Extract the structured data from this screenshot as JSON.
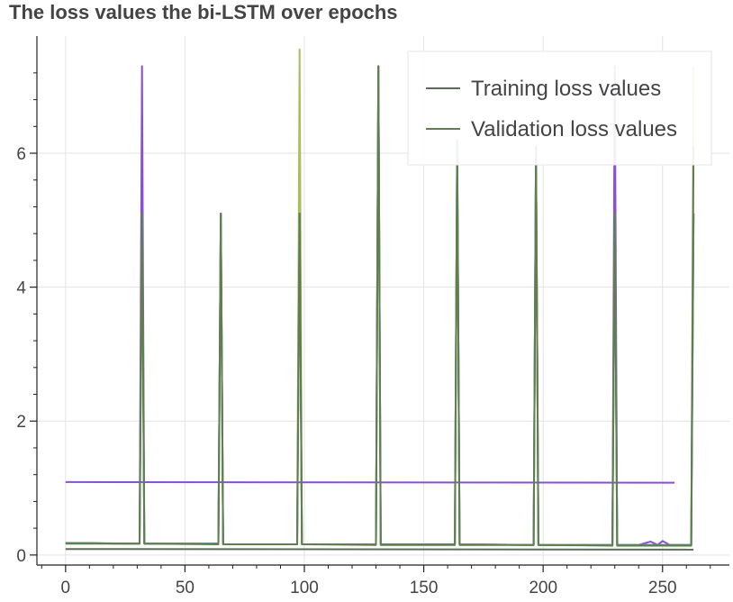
{
  "chart_data": {
    "type": "line",
    "title": "The loss values the bi-LSTM over epochs",
    "xlabel": "",
    "ylabel": "",
    "xlim": [
      -12,
      278
    ],
    "ylim": [
      -0.15,
      7.75
    ],
    "x_ticks": [
      0,
      50,
      100,
      150,
      200,
      250
    ],
    "y_ticks": [
      0,
      2,
      4,
      6
    ],
    "x_tick_labels": [
      "0",
      "50",
      "100",
      "150",
      "200",
      "250"
    ],
    "y_tick_labels": [
      "0",
      "2",
      "4",
      "6"
    ],
    "grid": true,
    "legend": {
      "position": "top-right",
      "entries": [
        "Training loss values",
        "Validation loss values"
      ]
    },
    "series": [
      {
        "role": "purple-flat",
        "color": "#8a4fd6",
        "points": [
          [
            0,
            1.09
          ],
          [
            255,
            1.08
          ]
        ]
      },
      {
        "role": "training-flat",
        "color": "#5b6b5b",
        "points": [
          [
            0,
            0.09
          ],
          [
            263,
            0.08
          ]
        ]
      },
      {
        "role": "purple-spiky",
        "color": "#8a4fd6",
        "points": [
          [
            0,
            0.18
          ],
          [
            10,
            0.18
          ],
          [
            20,
            0.17
          ],
          [
            31,
            0.17
          ],
          [
            32,
            7.3
          ],
          [
            33,
            0.17
          ],
          [
            64,
            0.17
          ],
          [
            65,
            5.1
          ],
          [
            66,
            0.16
          ],
          [
            97,
            0.16
          ],
          [
            98,
            5.1
          ],
          [
            99,
            0.16
          ],
          [
            130,
            0.16
          ],
          [
            131,
            7.3
          ],
          [
            132,
            0.16
          ],
          [
            163,
            0.16
          ],
          [
            164,
            6.1
          ],
          [
            165,
            0.16
          ],
          [
            196,
            0.15
          ],
          [
            197,
            6.1
          ],
          [
            198,
            0.15
          ],
          [
            229,
            0.15
          ],
          [
            230,
            7.3
          ],
          [
            231,
            0.15
          ],
          [
            240,
            0.15
          ],
          [
            245,
            0.2
          ],
          [
            248,
            0.15
          ],
          [
            250,
            0.21
          ],
          [
            253,
            0.15
          ],
          [
            262,
            0.15
          ],
          [
            263,
            5.1
          ]
        ]
      },
      {
        "role": "olive-spiky",
        "color": "#a8bf5a",
        "points": [
          [
            0,
            0.18
          ],
          [
            31,
            0.17
          ],
          [
            32,
            5.1
          ],
          [
            33,
            0.17
          ],
          [
            64,
            0.17
          ],
          [
            65,
            5.1
          ],
          [
            66,
            0.16
          ],
          [
            97,
            0.16
          ],
          [
            98,
            7.55
          ],
          [
            99,
            0.16
          ],
          [
            130,
            0.16
          ],
          [
            131,
            7.3
          ],
          [
            132,
            0.16
          ],
          [
            163,
            0.16
          ],
          [
            164,
            6.2
          ],
          [
            165,
            0.16
          ],
          [
            196,
            0.15
          ],
          [
            197,
            6.0
          ],
          [
            198,
            0.15
          ],
          [
            229,
            0.15
          ],
          [
            230,
            5.1
          ],
          [
            231,
            0.15
          ],
          [
            262,
            0.15
          ],
          [
            263,
            7.3
          ]
        ]
      },
      {
        "role": "teal-spiky",
        "color": "#4c8a80",
        "points": [
          [
            0,
            0.18
          ],
          [
            31,
            0.17
          ],
          [
            32,
            5.1
          ],
          [
            33,
            0.17
          ],
          [
            64,
            0.17
          ],
          [
            65,
            5.1
          ],
          [
            66,
            0.16
          ],
          [
            97,
            0.16
          ],
          [
            98,
            5.1
          ],
          [
            99,
            0.16
          ],
          [
            130,
            0.16
          ],
          [
            131,
            7.3
          ],
          [
            132,
            0.16
          ],
          [
            163,
            0.16
          ],
          [
            164,
            6.2
          ],
          [
            165,
            0.16
          ],
          [
            196,
            0.15
          ],
          [
            197,
            6.1
          ],
          [
            198,
            0.15
          ],
          [
            229,
            0.15
          ],
          [
            230,
            5.1
          ],
          [
            231,
            0.15
          ],
          [
            262,
            0.15
          ],
          [
            263,
            5.1
          ]
        ]
      },
      {
        "role": "validation-spiky",
        "color": "#5f7f4e",
        "points": [
          [
            0,
            0.17
          ],
          [
            31,
            0.17
          ],
          [
            32,
            5.1
          ],
          [
            33,
            0.17
          ],
          [
            64,
            0.16
          ],
          [
            65,
            5.1
          ],
          [
            66,
            0.16
          ],
          [
            97,
            0.16
          ],
          [
            98,
            5.1
          ],
          [
            99,
            0.16
          ],
          [
            130,
            0.15
          ],
          [
            131,
            7.3
          ],
          [
            132,
            0.15
          ],
          [
            163,
            0.15
          ],
          [
            164,
            6.0
          ],
          [
            165,
            0.15
          ],
          [
            196,
            0.15
          ],
          [
            197,
            6.0
          ],
          [
            198,
            0.15
          ],
          [
            229,
            0.14
          ],
          [
            230,
            5.1
          ],
          [
            231,
            0.14
          ],
          [
            262,
            0.14
          ],
          [
            263,
            6.1
          ]
        ]
      }
    ],
    "legend_colors": [
      "#5b6b5b",
      "#5f7f4e"
    ]
  }
}
